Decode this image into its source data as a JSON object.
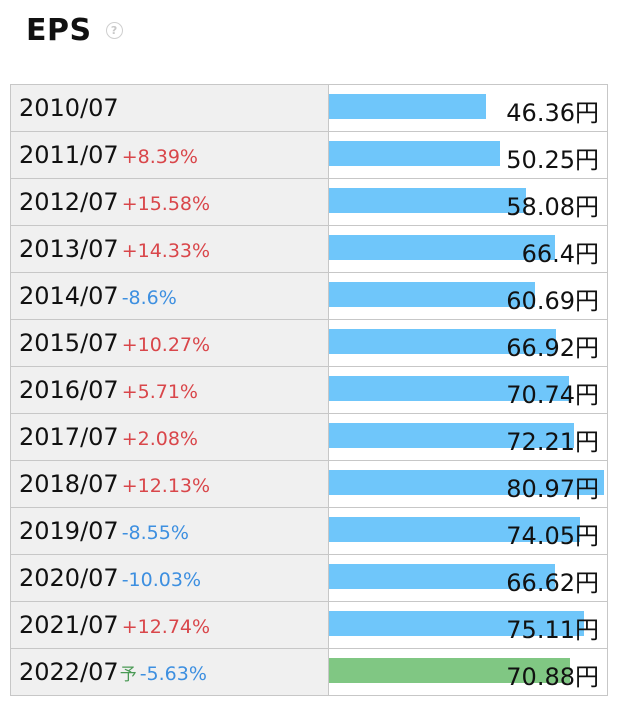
{
  "title": "EPS",
  "help_icon": "question-circle-icon",
  "colors": {
    "actual_bar": "#6fc6fa",
    "forecast_bar": "#80c783",
    "positive_change": "#d9464a",
    "negative_change": "#3d8fe0"
  },
  "chart_data": {
    "type": "bar",
    "orientation": "horizontal",
    "title": "EPS",
    "unit": "円",
    "xlim": [
      0,
      80.97
    ],
    "rows": [
      {
        "period": "2010/07",
        "forecast": "",
        "change": "",
        "value": 46.36,
        "value_label": "46.36円"
      },
      {
        "period": "2011/07",
        "forecast": "",
        "change": "+8.39%",
        "value": 50.25,
        "value_label": "50.25円"
      },
      {
        "period": "2012/07",
        "forecast": "",
        "change": "+15.58%",
        "value": 58.08,
        "value_label": "58.08円"
      },
      {
        "period": "2013/07",
        "forecast": "",
        "change": "+14.33%",
        "value": 66.4,
        "value_label": "66.4円"
      },
      {
        "period": "2014/07",
        "forecast": "",
        "change": "-8.6%",
        "value": 60.69,
        "value_label": "60.69円"
      },
      {
        "period": "2015/07",
        "forecast": "",
        "change": "+10.27%",
        "value": 66.92,
        "value_label": "66.92円"
      },
      {
        "period": "2016/07",
        "forecast": "",
        "change": "+5.71%",
        "value": 70.74,
        "value_label": "70.74円"
      },
      {
        "period": "2017/07",
        "forecast": "",
        "change": "+2.08%",
        "value": 72.21,
        "value_label": "72.21円"
      },
      {
        "period": "2018/07",
        "forecast": "",
        "change": "+12.13%",
        "value": 80.97,
        "value_label": "80.97円"
      },
      {
        "period": "2019/07",
        "forecast": "",
        "change": "-8.55%",
        "value": 74.05,
        "value_label": "74.05円"
      },
      {
        "period": "2020/07",
        "forecast": "",
        "change": "-10.03%",
        "value": 66.62,
        "value_label": "66.62円"
      },
      {
        "period": "2021/07",
        "forecast": "",
        "change": "+12.74%",
        "value": 75.11,
        "value_label": "75.11円"
      },
      {
        "period": "2022/07",
        "forecast": "予",
        "change": "-5.63%",
        "value": 70.88,
        "value_label": "70.88円"
      }
    ]
  }
}
